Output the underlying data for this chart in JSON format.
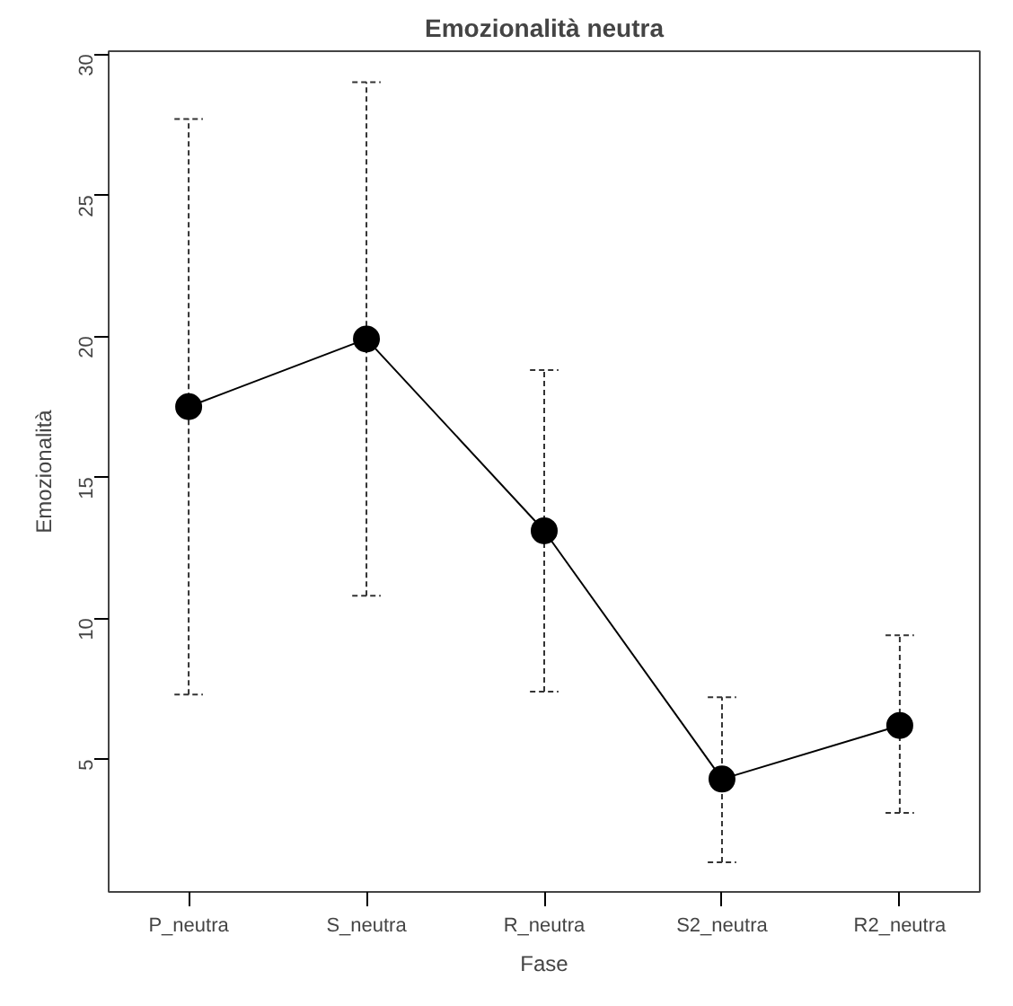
{
  "chart_data": {
    "type": "line",
    "title": "Emozionalità neutra",
    "xlabel": "Fase",
    "ylabel": "Emozionalità",
    "categories": [
      "P_neutra",
      "S_neutra",
      "R_neutra",
      "S2_neutra",
      "R2_neutra"
    ],
    "values": [
      17.5,
      19.9,
      13.1,
      4.3,
      6.2
    ],
    "errors": [
      [
        7.3,
        27.7
      ],
      [
        10.8,
        29.0
      ],
      [
        7.4,
        18.8
      ],
      [
        1.35,
        7.2
      ],
      [
        3.1,
        9.4
      ]
    ],
    "color": "#000000",
    "marker": "circle",
    "line_style": "solid",
    "grid": false,
    "ylim": [
      0.3,
      30.1
    ],
    "yticks": [
      5,
      10,
      15,
      20,
      25,
      30
    ]
  }
}
